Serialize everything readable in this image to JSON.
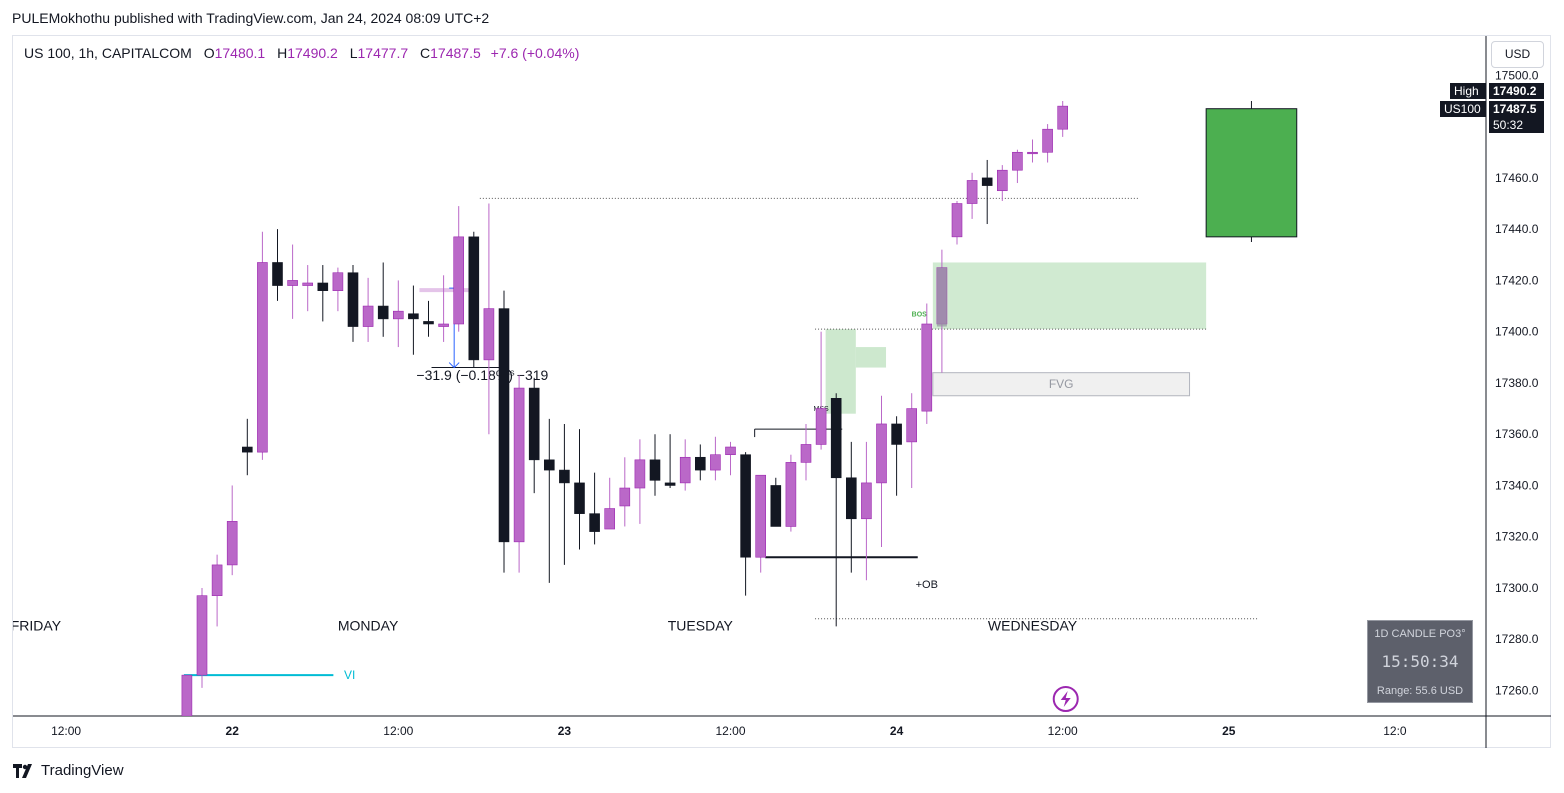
{
  "header": {
    "publisher": "PULEMokhothu published with TradingView.com, Jan 24, 2024 08:09 UTC+2"
  },
  "legend": {
    "symbol": "US 100, 1h, CAPITALCOM",
    "open_label": "O",
    "open": "17480.1",
    "high_label": "H",
    "high": "17490.2",
    "low_label": "L",
    "low": "17477.7",
    "close_label": "C",
    "close": "17487.5",
    "change": "+7.6 (+0.04%)"
  },
  "currency_button": "USD",
  "price_labels": {
    "high_tag": "High",
    "high_value": "17490.2",
    "symbol_tag": "US100",
    "last_value": "17487.5",
    "countdown": "50:32"
  },
  "info_box": {
    "title": "1D CANDLE PO3°",
    "countdown": "15:50:34",
    "range": "Range: 55.6 USD"
  },
  "footer": {
    "brand": "TradingView"
  },
  "colors": {
    "bull": "#ba68c8",
    "bear": "#131722",
    "fvg_green": "#c8e6c9",
    "projection_green": "#4caf50",
    "vi_line": "#00bcd4",
    "mss_arrow": "#2962ff",
    "bos_text": "#4caf50",
    "alert_icon": "#9c27b0"
  },
  "icons": {
    "replay": "lightning-icon",
    "logo": "tradingview-logo-icon"
  },
  "chart_data": {
    "type": "candlestick",
    "symbol": "US 100",
    "timeframe": "1h",
    "currency": "USD",
    "ylim": [
      17250,
      17505
    ],
    "y_ticks": [
      17260,
      17280,
      17300,
      17320,
      17340,
      17360,
      17380,
      17400,
      17420,
      17440,
      17460,
      17480,
      17500
    ],
    "y_tick_labels": [
      "17260.0",
      "17280.0",
      "17300.0",
      "17320.0",
      "17340.0",
      "17360.0",
      "17380.0",
      "17400.0",
      "17420.0",
      "17440.0",
      "17460.0",
      "17480.0",
      "17500.0"
    ],
    "x_ticks": [
      {
        "label": "12:00",
        "bar": 6
      },
      {
        "label": "22",
        "bar": 17
      },
      {
        "label": "12:00",
        "bar": 28
      },
      {
        "label": "23",
        "bar": 39
      },
      {
        "label": "12:00",
        "bar": 50
      },
      {
        "label": "24",
        "bar": 61
      },
      {
        "label": "12:00",
        "bar": 72
      },
      {
        "label": "25",
        "bar": 83
      },
      {
        "label": "12:0",
        "bar": 94
      }
    ],
    "candles": [
      {
        "bar": 14,
        "o": 17250,
        "h": 17266,
        "l": 17249,
        "c": 17266
      },
      {
        "bar": 15,
        "o": 17266,
        "h": 17300,
        "l": 17261,
        "c": 17297
      },
      {
        "bar": 16,
        "o": 17297,
        "h": 17313,
        "l": 17285,
        "c": 17309
      },
      {
        "bar": 17,
        "o": 17309,
        "h": 17340,
        "l": 17305,
        "c": 17326
      },
      {
        "bar": 18,
        "o": 17355,
        "h": 17366,
        "l": 17344,
        "c": 17353
      },
      {
        "bar": 19,
        "o": 17353,
        "h": 17439,
        "l": 17350,
        "c": 17427
      },
      {
        "bar": 20,
        "o": 17427,
        "h": 17440,
        "l": 17412,
        "c": 17418
      },
      {
        "bar": 21,
        "o": 17418,
        "h": 17434,
        "l": 17405,
        "c": 17420
      },
      {
        "bar": 22,
        "o": 17418,
        "h": 17426,
        "l": 17408,
        "c": 17419
      },
      {
        "bar": 23,
        "o": 17419,
        "h": 17426,
        "l": 17404,
        "c": 17416
      },
      {
        "bar": 24,
        "o": 17416,
        "h": 17425,
        "l": 17408,
        "c": 17423
      },
      {
        "bar": 25,
        "o": 17423,
        "h": 17426,
        "l": 17396,
        "c": 17402
      },
      {
        "bar": 26,
        "o": 17402,
        "h": 17421,
        "l": 17396,
        "c": 17410
      },
      {
        "bar": 27,
        "o": 17410,
        "h": 17427,
        "l": 17398,
        "c": 17405
      },
      {
        "bar": 28,
        "o": 17405,
        "h": 17420,
        "l": 17394,
        "c": 17408
      },
      {
        "bar": 29,
        "o": 17407,
        "h": 17418,
        "l": 17391,
        "c": 17405
      },
      {
        "bar": 30,
        "o": 17404,
        "h": 17412,
        "l": 17398,
        "c": 17403
      },
      {
        "bar": 31,
        "o": 17402,
        "h": 17422,
        "l": 17396,
        "c": 17403
      },
      {
        "bar": 32,
        "o": 17403,
        "h": 17449,
        "l": 17400,
        "c": 17437
      },
      {
        "bar": 33,
        "o": 17437,
        "h": 17439,
        "l": 17386,
        "c": 17389
      },
      {
        "bar": 34,
        "o": 17389,
        "h": 17450,
        "l": 17360,
        "c": 17409
      },
      {
        "bar": 35,
        "o": 17409,
        "h": 17416,
        "l": 17306,
        "c": 17318
      },
      {
        "bar": 36,
        "o": 17318,
        "h": 17383,
        "l": 17306,
        "c": 17378
      },
      {
        "bar": 37,
        "o": 17378,
        "h": 17382,
        "l": 17337,
        "c": 17350
      },
      {
        "bar": 38,
        "o": 17350,
        "h": 17366,
        "l": 17302,
        "c": 17346
      },
      {
        "bar": 39,
        "o": 17346,
        "h": 17364,
        "l": 17309,
        "c": 17341
      },
      {
        "bar": 40,
        "o": 17341,
        "h": 17362,
        "l": 17315,
        "c": 17329
      },
      {
        "bar": 41,
        "o": 17329,
        "h": 17345,
        "l": 17317,
        "c": 17322
      },
      {
        "bar": 42,
        "o": 17323,
        "h": 17343,
        "l": 17323,
        "c": 17331
      },
      {
        "bar": 43,
        "o": 17332,
        "h": 17351,
        "l": 17324,
        "c": 17339
      },
      {
        "bar": 44,
        "o": 17339,
        "h": 17358,
        "l": 17325,
        "c": 17350
      },
      {
        "bar": 45,
        "o": 17350,
        "h": 17360,
        "l": 17336,
        "c": 17342
      },
      {
        "bar": 46,
        "o": 17341,
        "h": 17360,
        "l": 17339,
        "c": 17340
      },
      {
        "bar": 47,
        "o": 17341,
        "h": 17358,
        "l": 17338,
        "c": 17351
      },
      {
        "bar": 48,
        "o": 17351,
        "h": 17356,
        "l": 17342,
        "c": 17346
      },
      {
        "bar": 49,
        "o": 17346,
        "h": 17359,
        "l": 17342,
        "c": 17352
      },
      {
        "bar": 50,
        "o": 17352,
        "h": 17357,
        "l": 17344,
        "c": 17355
      },
      {
        "bar": 51,
        "o": 17352,
        "h": 17353,
        "l": 17297,
        "c": 17312
      },
      {
        "bar": 52,
        "o": 17312,
        "h": 17343,
        "l": 17306,
        "c": 17344
      },
      {
        "bar": 53,
        "o": 17340,
        "h": 17343,
        "l": 17325,
        "c": 17324
      },
      {
        "bar": 54,
        "o": 17324,
        "h": 17352,
        "l": 17322,
        "c": 17349
      },
      {
        "bar": 55,
        "o": 17349,
        "h": 17364,
        "l": 17342,
        "c": 17356
      },
      {
        "bar": 56,
        "o": 17356,
        "h": 17400,
        "l": 17354,
        "c": 17370
      },
      {
        "bar": 57,
        "o": 17374,
        "h": 17376,
        "l": 17285,
        "c": 17343
      },
      {
        "bar": 58,
        "o": 17343,
        "h": 17357,
        "l": 17306,
        "c": 17327
      },
      {
        "bar": 59,
        "o": 17327,
        "h": 17357,
        "l": 17303,
        "c": 17341
      },
      {
        "bar": 60,
        "o": 17341,
        "h": 17375,
        "l": 17316,
        "c": 17364
      },
      {
        "bar": 61,
        "o": 17364,
        "h": 17367,
        "l": 17336,
        "c": 17356
      },
      {
        "bar": 62,
        "o": 17357,
        "h": 17376,
        "l": 17339,
        "c": 17370
      },
      {
        "bar": 63,
        "o": 17369,
        "h": 17411,
        "l": 17364,
        "c": 17403
      },
      {
        "bar": 64,
        "o": 17403,
        "h": 17432,
        "l": 17384,
        "c": 17425
      },
      {
        "bar": 65,
        "o": 17437,
        "h": 17451,
        "l": 17434,
        "c": 17450
      },
      {
        "bar": 66,
        "o": 17450,
        "h": 17462,
        "l": 17444,
        "c": 17459
      },
      {
        "bar": 67,
        "o": 17460,
        "h": 17467,
        "l": 17442,
        "c": 17457
      },
      {
        "bar": 68,
        "o": 17455,
        "h": 17465,
        "l": 17451,
        "c": 17463
      },
      {
        "bar": 69,
        "o": 17463,
        "h": 17471,
        "l": 17458,
        "c": 17470
      },
      {
        "bar": 70,
        "o": 17470,
        "h": 17475,
        "l": 17466,
        "c": 17470
      },
      {
        "bar": 71,
        "o": 17470,
        "h": 17481,
        "l": 17466,
        "c": 17479
      },
      {
        "bar": 72,
        "o": 17479,
        "h": 17490,
        "l": 17476,
        "c": 17488
      }
    ],
    "projection_candle": {
      "bar_start": 81.5,
      "bar_end": 87.5,
      "o": 17437,
      "h": 17490,
      "l": 17435,
      "c": 17487
    },
    "annotations": {
      "day_labels": [
        {
          "text": "FRIDAY",
          "bar": 4
        },
        {
          "text": "MONDAY",
          "bar": 26
        },
        {
          "text": "TUESDAY",
          "bar": 48
        },
        {
          "text": "WEDNESDAY",
          "bar": 70
        }
      ],
      "measure": {
        "text": "−31.9 (−0.18%) −319",
        "price": 17380
      },
      "mss_1": {
        "text": "MSS"
      },
      "mss_2": {
        "text": "MSS"
      },
      "bos": {
        "text": "BOS"
      },
      "ob": {
        "text": "+OB"
      },
      "fvg": {
        "text": "FVG"
      },
      "vi": {
        "text": "VI"
      },
      "levels": {
        "high_dotted": 17452,
        "bos_dotted": 17401,
        "low_dotted": 17288,
        "ob_level": 17312,
        "mss_level": 17362
      },
      "zones": {
        "fvg_green": {
          "top": 17427,
          "bottom": 17401
        },
        "fvg_grey": {
          "top": 17384,
          "bottom": 17375
        }
      }
    }
  }
}
